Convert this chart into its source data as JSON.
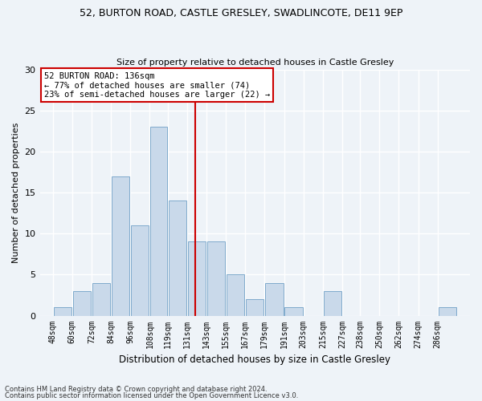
{
  "title1": "52, BURTON ROAD, CASTLE GRESLEY, SWADLINCOTE, DE11 9EP",
  "title2": "Size of property relative to detached houses in Castle Gresley",
  "xlabel": "Distribution of detached houses by size in Castle Gresley",
  "ylabel": "Number of detached properties",
  "footnote1": "Contains HM Land Registry data © Crown copyright and database right 2024.",
  "footnote2": "Contains public sector information licensed under the Open Government Licence v3.0.",
  "bar_labels": [
    "48sqm",
    "60sqm",
    "72sqm",
    "84sqm",
    "96sqm",
    "108sqm",
    "119sqm",
    "131sqm",
    "143sqm",
    "155sqm",
    "167sqm",
    "179sqm",
    "191sqm",
    "203sqm",
    "215sqm",
    "227sqm",
    "238sqm",
    "250sqm",
    "262sqm",
    "274sqm",
    "286sqm"
  ],
  "bar_values": [
    1,
    3,
    4,
    17,
    11,
    23,
    14,
    9,
    9,
    5,
    2,
    4,
    1,
    0,
    3,
    0,
    0,
    0,
    0,
    0,
    1
  ],
  "bar_color": "#c9d9ea",
  "bar_edgecolor": "#7faacc",
  "background_color": "#eef3f8",
  "grid_color": "#ffffff",
  "annotation_box_color": "#ffffff",
  "annotation_border_color": "#cc0000",
  "annotation_text_line1": "52 BURTON ROAD: 136sqm",
  "annotation_text_line2": "← 77% of detached houses are smaller (74)",
  "annotation_text_line3": "23% of semi-detached houses are larger (22) →",
  "vline_x": 136,
  "vline_color": "#cc0000",
  "ylim": [
    0,
    30
  ],
  "yticks": [
    0,
    5,
    10,
    15,
    20,
    25,
    30
  ],
  "bin_width": 12,
  "title1_fontsize": 9.0,
  "title2_fontsize": 8.0,
  "xlabel_fontsize": 8.5,
  "ylabel_fontsize": 8.0,
  "xtick_fontsize": 7.0,
  "ytick_fontsize": 8.0,
  "footnote_fontsize": 6.0
}
